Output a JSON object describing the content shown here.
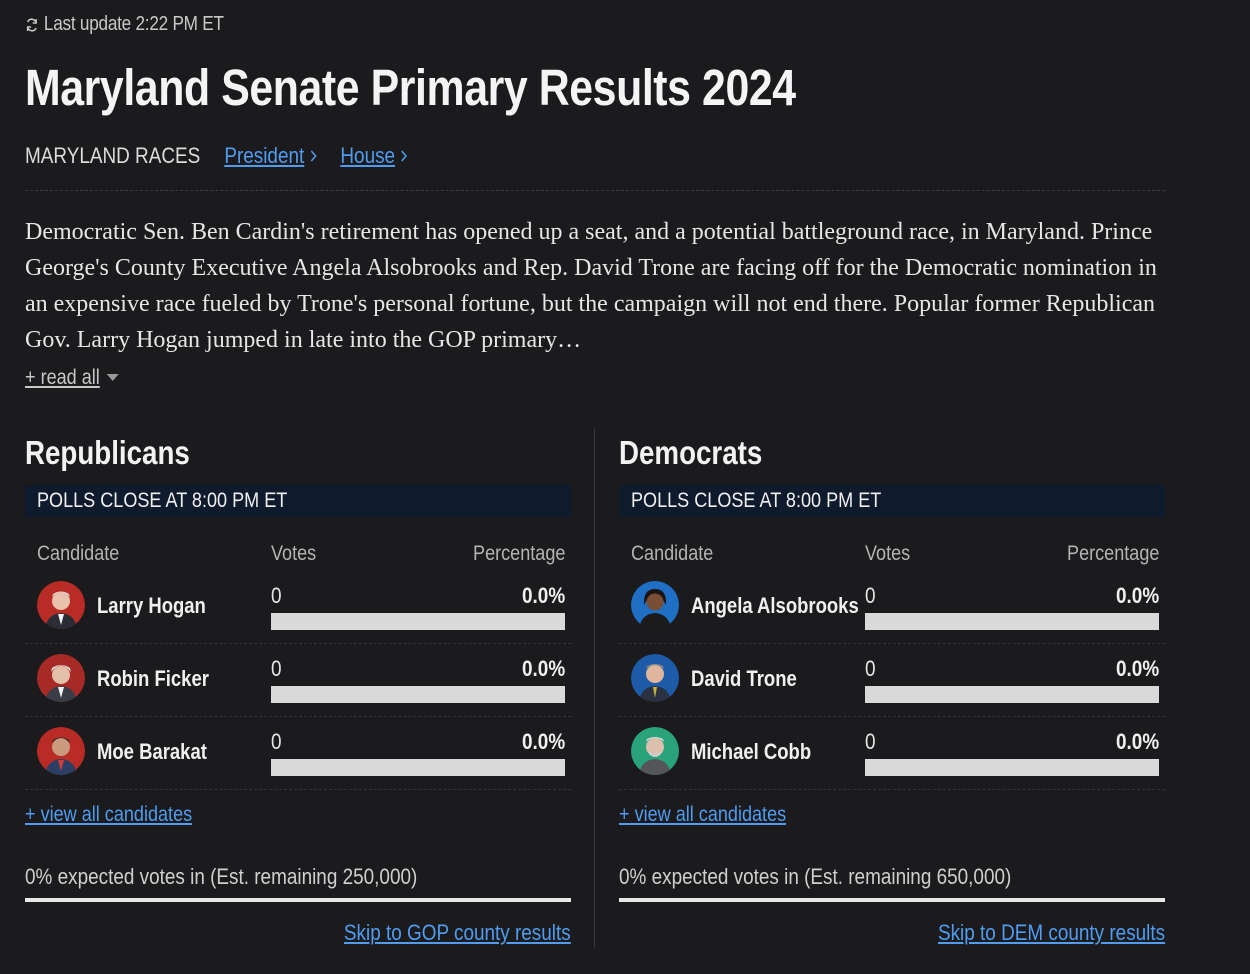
{
  "header": {
    "last_update": "Last update 2:22 PM ET",
    "title": "Maryland Senate Primary Results 2024"
  },
  "races_nav": {
    "label": "MARYLAND RACES",
    "links": [
      "President",
      "House"
    ]
  },
  "description": "Democratic Sen. Ben Cardin's retirement has opened up a seat, and a potential battleground race, in Maryland. Prince George's County Executive Angela Alsobrooks and Rep. David Trone are facing off for the Democratic nomination in an expensive race fueled by Trone's personal fortune, but the campaign will not end there. Popular former Republican Gov. Larry Hogan jumped in late into the GOP primary…",
  "read_all": "+ read all",
  "columns": {
    "candidate": "Candidate",
    "votes": "Votes",
    "percentage": "Percentage"
  },
  "republicans": {
    "title": "Republicans",
    "polls_close": "POLLS CLOSE AT 8:00 PM ET",
    "color": "#c0392b",
    "candidates": [
      {
        "name": "Larry Hogan",
        "votes": "0",
        "pct": "0.0%",
        "share": 0
      },
      {
        "name": "Robin Ficker",
        "votes": "0",
        "pct": "0.0%",
        "share": 0
      },
      {
        "name": "Moe Barakat",
        "votes": "0",
        "pct": "0.0%",
        "share": 0
      }
    ],
    "view_all": "+ view all candidates",
    "expected": "0% expected votes in (Est. remaining 250,000)",
    "expected_fraction": 0,
    "skip": "Skip to GOP county results"
  },
  "democrats": {
    "title": "Democrats",
    "polls_close": "POLLS CLOSE AT 8:00 PM ET",
    "color": "#1f6fc5",
    "candidates": [
      {
        "name": "Angela Alsobrooks",
        "votes": "0",
        "pct": "0.0%",
        "share": 0
      },
      {
        "name": "David Trone",
        "votes": "0",
        "pct": "0.0%",
        "share": 0
      },
      {
        "name": "Michael Cobb",
        "votes": "0",
        "pct": "0.0%",
        "share": 0
      }
    ],
    "view_all": "+ view all candidates",
    "expected": "0% expected votes in (Est. remaining 650,000)",
    "expected_fraction": 0,
    "skip": "Skip to DEM county results"
  },
  "colors": {
    "background": "#1b1b1d",
    "link": "#4f9cf0",
    "polls_banner": "#0f1b2d",
    "bar_empty": "#d9d9d9"
  }
}
